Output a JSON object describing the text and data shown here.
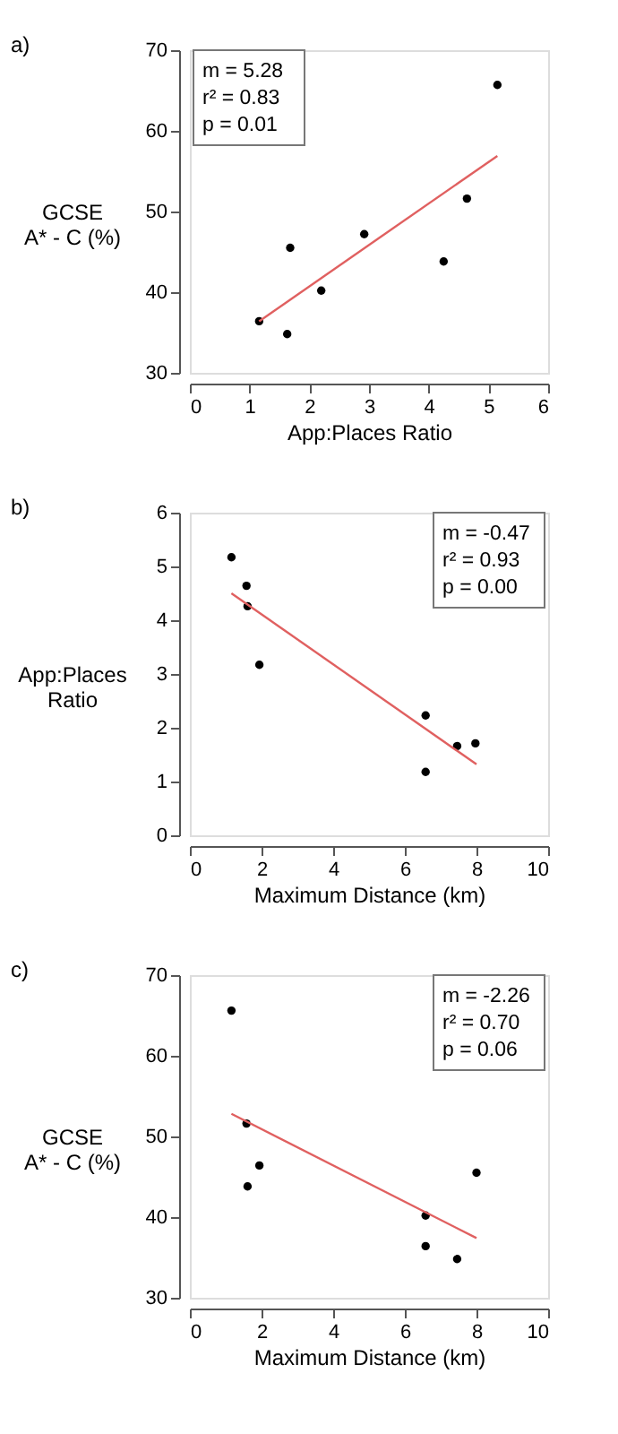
{
  "chart_data": [
    {
      "type": "scatter",
      "xlabel": "App:Places Ratio",
      "ylabel": "GCSE\nA* - C (%)",
      "xlim": [
        0,
        6
      ],
      "xticks": [
        0,
        1,
        2,
        3,
        4,
        5,
        6
      ],
      "ylim": [
        30,
        70
      ],
      "yticks": [
        30,
        40,
        50,
        60,
        70
      ],
      "annotations": [
        "a)",
        "m = 5.28",
        "r² = 0.83",
        "p = 0.01"
      ],
      "series": [
        {
          "marker": "circle",
          "color": "#000000",
          "x": [
            1.16,
            1.63,
            1.68,
            2.2,
            2.92,
            4.25,
            4.64,
            5.15
          ],
          "values": [
            36.4,
            34.8,
            45.5,
            40.2,
            47.2,
            43.8,
            51.6,
            65.7
          ]
        },
        {
          "type": "line",
          "line_style": "solid",
          "color": "#e06060",
          "x": [
            1.16,
            5.15
          ],
          "values": [
            36.4,
            56.9
          ]
        }
      ]
    },
    {
      "type": "scatter",
      "xlabel": "Maximum Distance (km)",
      "ylabel": "App:Places\nRatio",
      "xlim": [
        0,
        10
      ],
      "xticks": [
        0,
        2,
        4,
        6,
        8,
        10
      ],
      "ylim": [
        0,
        6
      ],
      "yticks": [
        0,
        1,
        2,
        3,
        4,
        5,
        6
      ],
      "annotations": [
        "b)",
        "m = -0.47",
        "r² = 0.93",
        "p = 0.00"
      ],
      "series": [
        {
          "marker": "circle",
          "color": "#000000",
          "x": [
            1.16,
            1.58,
            1.61,
            1.94,
            6.58,
            6.58,
            7.46,
            7.97
          ],
          "values": [
            5.17,
            4.64,
            4.26,
            3.17,
            2.23,
            1.18,
            1.66,
            1.71
          ]
        },
        {
          "type": "line",
          "line_style": "solid",
          "color": "#e06060",
          "x": [
            1.16,
            8.0
          ],
          "values": [
            4.5,
            1.32
          ]
        }
      ]
    },
    {
      "type": "scatter",
      "xlabel": "Maximum Distance (km)",
      "ylabel": "GCSE\nA* - C (%)",
      "xlim": [
        0,
        10
      ],
      "xticks": [
        0,
        2,
        4,
        6,
        8,
        10
      ],
      "ylim": [
        30,
        70
      ],
      "yticks": [
        30,
        40,
        50,
        60,
        70
      ],
      "annotations": [
        "c)",
        "m = -2.26",
        "r² = 0.70",
        "p = 0.06"
      ],
      "series": [
        {
          "marker": "circle",
          "color": "#000000",
          "x": [
            1.16,
            1.58,
            1.94,
            1.61,
            6.58,
            6.58,
            7.46,
            8.0
          ],
          "values": [
            65.6,
            51.6,
            46.4,
            43.8,
            40.2,
            36.4,
            34.8,
            45.5
          ]
        },
        {
          "type": "line",
          "line_style": "solid",
          "color": "#e06060",
          "x": [
            1.16,
            8.0
          ],
          "values": [
            52.8,
            37.4
          ]
        }
      ]
    }
  ]
}
